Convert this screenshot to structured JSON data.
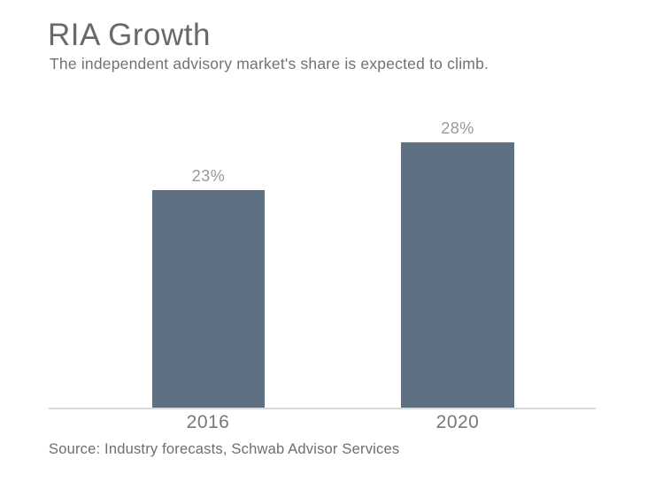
{
  "header": {
    "title": "RIA Growth",
    "subtitle": "The independent advisory market's share is expected to climb."
  },
  "footer": {
    "source": "Source: Industry forecasts, Schwab Advisor Services"
  },
  "chart_data": {
    "type": "bar",
    "title": "RIA Growth",
    "subtitle": "The independent advisory market's share is expected to climb.",
    "categories": [
      "2016",
      "2020"
    ],
    "values": [
      23,
      28
    ],
    "value_labels": [
      "23%",
      "28%"
    ],
    "xlabel": "",
    "ylabel": "",
    "ylim": [
      0,
      30
    ],
    "unit": "percent",
    "grid": false,
    "legend": false,
    "bar_color": "#5e7082",
    "value_label_color": "#98999b",
    "category_label_color": "#77787b",
    "axis_line_color": "#d9d9d9",
    "title_color": "#68696c",
    "source": "Source: Industry forecasts, Schwab Advisor Services"
  }
}
